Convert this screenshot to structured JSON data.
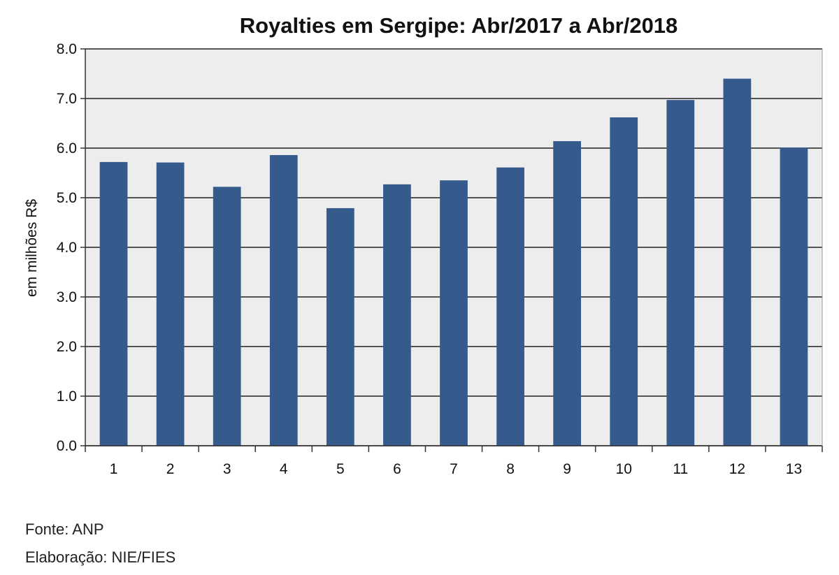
{
  "chart_data": {
    "type": "bar",
    "title": "Royalties em Sergipe: Abr/2017 a Abr/2018",
    "xlabel": "",
    "ylabel": "em milhões R$",
    "categories": [
      "1",
      "2",
      "3",
      "4",
      "5",
      "6",
      "7",
      "8",
      "9",
      "10",
      "11",
      "12",
      "13"
    ],
    "values": [
      5.72,
      5.71,
      5.22,
      5.86,
      4.79,
      5.27,
      5.35,
      5.61,
      6.14,
      6.62,
      6.97,
      7.4,
      6.01
    ],
    "ylim": [
      0,
      8
    ],
    "yticks": [
      "0.0",
      "1.0",
      "2.0",
      "3.0",
      "4.0",
      "5.0",
      "6.0",
      "7.0",
      "8.0"
    ],
    "grid": true,
    "legend": "none",
    "colors": {
      "bar": "#355A8C",
      "plot_background": "#EDEDED",
      "gridline": "#222222",
      "axis": "#333333"
    }
  },
  "notes": {
    "source": "Fonte: ANP",
    "credit": "Elaboração: NIE/FIES"
  }
}
